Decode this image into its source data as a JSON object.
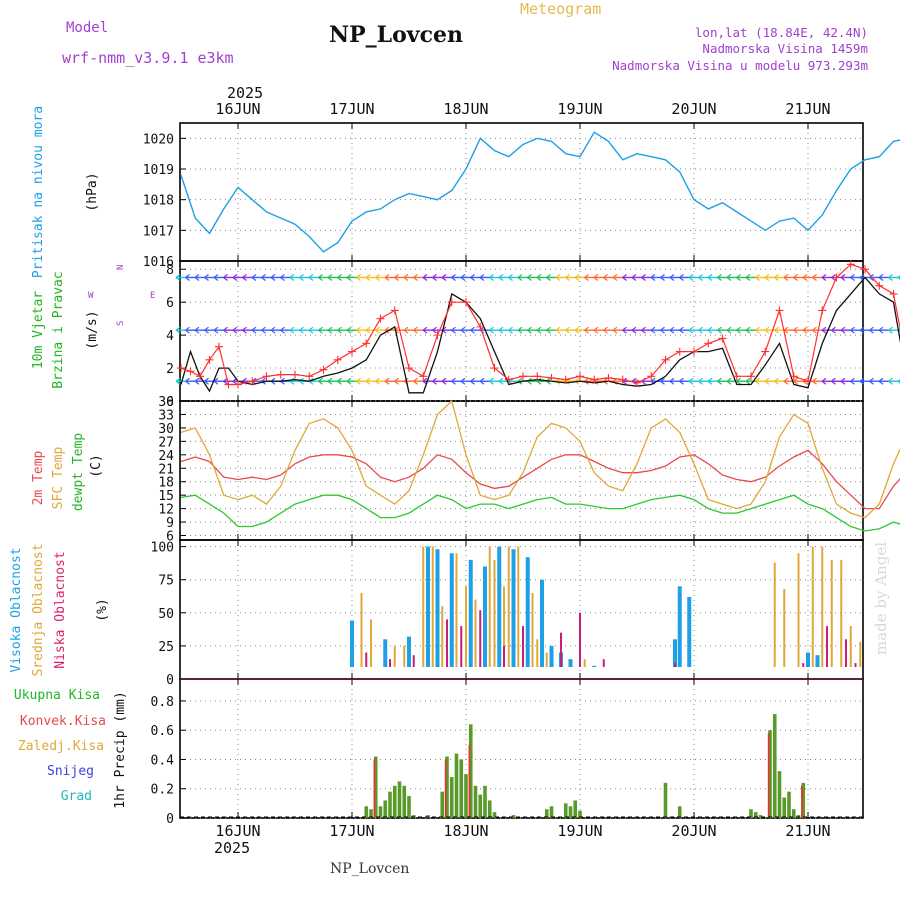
{
  "header": {
    "model_label": "Model",
    "model_name": "wrf-nmm_v3.9.1  e3km",
    "station": "NP_Lovcen",
    "meteogram": "Meteogram",
    "lonlat": "lon,lat (18.84E, 42.4N)",
    "elevation": "Nadmorska Visina 1459m",
    "model_elevation": "Nadmorska Visina u modelu 973.293m",
    "year": "2025",
    "footer_station": "NP_Lovcen",
    "watermark": "made by Angel"
  },
  "colors": {
    "pressure": "#1ea0e6",
    "temp2m": "#e84a4a",
    "sfc_temp": "#e0a838",
    "dewpoint": "#2ec82e",
    "cloud_high": "#1ea0e6",
    "cloud_mid": "#e0a838",
    "cloud_low": "#c81e78",
    "precip_total": "#5a9a2a",
    "precip_conv": "#e83030",
    "wind_speed": "#111111",
    "wind_gust": "#ff3030",
    "purple_text": "#a040d0",
    "title_orange": "#e8b850",
    "ylabel_green": "#22b522",
    "ylabel_red": "#e84a4a",
    "ylabel_orange": "#e0a838",
    "ylabel_blue": "#1ea0e6",
    "ylabel_pink": "#e0206e"
  },
  "chart_data": [
    {
      "type": "line",
      "title": "Pritisak na nivou mora",
      "ylabel": "Pritisak na nivou mora",
      "unit": "(hPa)",
      "x_days": [
        "16JUN",
        "17JUN",
        "18JUN",
        "19JUN",
        "20JUN",
        "21JUN"
      ],
      "x_start_day_offset": -0.5,
      "ylim": [
        1016,
        1020.5
      ],
      "yticks": [
        1016,
        1017,
        1018,
        1019,
        1020
      ],
      "hours": [
        -12,
        -9,
        -6,
        -3,
        0,
        3,
        6,
        9,
        12,
        15,
        18,
        21,
        24,
        27,
        30,
        33,
        36,
        39,
        42,
        45,
        48,
        51,
        54,
        57,
        60,
        63,
        66,
        69,
        72,
        75,
        78,
        81,
        84,
        87,
        90,
        93,
        96,
        99,
        102,
        105,
        108,
        111,
        114,
        117,
        120,
        123,
        126,
        129,
        132,
        135,
        138,
        141,
        144
      ],
      "values": [
        1018.8,
        1017.4,
        1016.9,
        1017.7,
        1018.4,
        1018.0,
        1017.6,
        1017.4,
        1017.2,
        1016.8,
        1016.3,
        1016.6,
        1017.3,
        1017.6,
        1017.7,
        1018.0,
        1018.2,
        1018.1,
        1018.0,
        1018.3,
        1019.0,
        1020.0,
        1019.6,
        1019.4,
        1019.8,
        1020.0,
        1019.9,
        1019.5,
        1019.4,
        1020.2,
        1019.9,
        1019.3,
        1019.5,
        1019.4,
        1019.3,
        1018.9,
        1018.0,
        1017.7,
        1017.9,
        1017.6,
        1017.3,
        1017.0,
        1017.3,
        1017.4,
        1017.0,
        1017.5,
        1018.3,
        1019.0,
        1019.3,
        1019.4,
        1019.9,
        1020.0,
        1019.3
      ]
    },
    {
      "type": "line",
      "title": "10m Vjetar Brzina i Pravac",
      "ylabel": "10m Vjetar Brzina i Pravac",
      "unit": "(m/s)",
      "compass_labels": [
        "N",
        "W",
        "E",
        "S"
      ],
      "ylim": [
        0,
        8.5
      ],
      "yticks": [
        0,
        2,
        4,
        6,
        8
      ],
      "series": [
        {
          "name": "speed",
          "hours": [
            -12,
            -10,
            -8,
            -6,
            -4,
            -2,
            0,
            3,
            6,
            9,
            12,
            15,
            18,
            21,
            24,
            27,
            30,
            33,
            36,
            39,
            42,
            45,
            48,
            51,
            54,
            57,
            60,
            63,
            66,
            69,
            72,
            75,
            78,
            81,
            84,
            87,
            90,
            93,
            96,
            99,
            102,
            105,
            108,
            111,
            114,
            117,
            120,
            123,
            126,
            129,
            132,
            135,
            138,
            141,
            144
          ],
          "values": [
            1.0,
            3.0,
            1.5,
            0.6,
            2.0,
            2.0,
            1.2,
            1.0,
            1.2,
            1.2,
            1.3,
            1.2,
            1.5,
            1.7,
            2.0,
            2.5,
            4.0,
            4.5,
            0.5,
            0.5,
            3.0,
            6.5,
            6.0,
            5.0,
            3.0,
            1.0,
            1.2,
            1.3,
            1.2,
            1.1,
            1.2,
            1.1,
            1.2,
            1.0,
            0.9,
            1.0,
            1.5,
            2.5,
            3.0,
            3.0,
            3.2,
            1.0,
            1.0,
            2.2,
            3.5,
            1.0,
            0.8,
            3.5,
            5.5,
            6.5,
            7.5,
            6.5,
            6.0,
            1.0,
            1.5
          ]
        },
        {
          "name": "gust",
          "hours": [
            -12,
            -10,
            -8,
            -6,
            -4,
            -2,
            0,
            3,
            6,
            9,
            12,
            15,
            18,
            21,
            24,
            27,
            30,
            33,
            36,
            39,
            42,
            45,
            48,
            51,
            54,
            57,
            60,
            63,
            66,
            69,
            72,
            75,
            78,
            81,
            84,
            87,
            90,
            93,
            96,
            99,
            102,
            105,
            108,
            111,
            114,
            117,
            120,
            123,
            126,
            129,
            132,
            135,
            138,
            141,
            144
          ],
          "values": [
            2.0,
            1.8,
            1.5,
            2.5,
            3.3,
            1.0,
            1.0,
            1.2,
            1.5,
            1.6,
            1.6,
            1.5,
            1.9,
            2.5,
            3.0,
            3.5,
            5.0,
            5.5,
            2.0,
            1.5,
            4.0,
            6.0,
            6.0,
            4.5,
            2.0,
            1.3,
            1.5,
            1.5,
            1.4,
            1.3,
            1.5,
            1.3,
            1.4,
            1.3,
            1.1,
            1.5,
            2.5,
            3.0,
            3.0,
            3.5,
            3.8,
            1.5,
            1.5,
            3.0,
            5.5,
            1.5,
            1.2,
            5.5,
            7.5,
            8.3,
            8.0,
            7.0,
            6.5,
            2.0,
            3.5
          ]
        }
      ]
    },
    {
      "type": "line",
      "title": "2m Temp / SFC Temp / dewpt Temp",
      "ylabels": [
        "2m Temp",
        "SFC Temp",
        "dewpt Temp"
      ],
      "unit": "(C)",
      "ylim": [
        5,
        36
      ],
      "yticks": [
        6,
        9,
        12,
        15,
        18,
        21,
        24,
        27,
        30,
        33,
        36
      ],
      "hours": [
        -12,
        -9,
        -6,
        -3,
        0,
        3,
        6,
        9,
        12,
        15,
        18,
        21,
        24,
        27,
        30,
        33,
        36,
        39,
        42,
        45,
        48,
        51,
        54,
        57,
        60,
        63,
        66,
        69,
        72,
        75,
        78,
        81,
        84,
        87,
        90,
        93,
        96,
        99,
        102,
        105,
        108,
        111,
        114,
        117,
        120,
        123,
        126,
        129,
        132,
        135,
        138,
        141,
        144
      ],
      "series": [
        {
          "name": "2m Temp",
          "values": [
            22.5,
            23.5,
            22.5,
            19,
            18.5,
            19,
            18.5,
            19.5,
            22,
            23.5,
            24,
            24,
            23.5,
            22,
            19,
            18,
            19,
            21,
            24,
            23,
            20,
            17.5,
            16.5,
            17,
            19,
            21,
            23,
            24,
            24,
            22.5,
            21,
            20,
            20,
            20.5,
            21.5,
            23.5,
            24,
            22,
            19.5,
            18.5,
            18,
            19,
            21.5,
            23.5,
            25,
            22,
            18,
            15,
            12,
            12,
            17,
            20.5,
            21.5
          ]
        },
        {
          "name": "SFC Temp",
          "values": [
            29,
            30,
            24,
            15,
            14,
            15,
            13,
            17,
            25,
            31,
            32,
            30,
            25,
            17,
            15,
            13,
            16,
            24,
            33,
            36,
            24,
            15,
            14,
            15,
            20,
            28,
            31,
            30,
            27,
            20,
            17,
            16,
            22,
            30,
            32,
            29,
            22,
            14,
            13,
            12,
            13,
            18,
            28,
            33,
            31,
            21,
            13,
            11,
            10,
            13,
            22,
            29,
            29
          ]
        },
        {
          "name": "dewpt Temp",
          "values": [
            14.5,
            15,
            13,
            11,
            8,
            8,
            9,
            11,
            13,
            14,
            15,
            15,
            14,
            12,
            10,
            10,
            11,
            13,
            15,
            14,
            12,
            13,
            13,
            12,
            13,
            14,
            14.5,
            13,
            13,
            12.5,
            12,
            12,
            13,
            14,
            14.5,
            15,
            14,
            12,
            11,
            11,
            12,
            13,
            14,
            15,
            13,
            12,
            10,
            8,
            7,
            7.5,
            9,
            8,
            7.5
          ]
        }
      ]
    },
    {
      "type": "bar",
      "title": "Visoka Oblacnost / Srednja Oblacnost / Niska Oblacnost",
      "ylabels": [
        "Visoka Oblacnost",
        "Srednja Oblacnost",
        "Niska Oblacnost"
      ],
      "unit": "(%)",
      "ylim": [
        0,
        105
      ],
      "yticks": [
        0,
        25,
        50,
        75,
        100
      ],
      "series": [
        {
          "name": "Visoka Oblacnost",
          "hours": [
            24,
            31,
            36,
            40,
            42,
            45,
            49,
            52,
            55,
            58,
            61,
            64,
            66,
            68,
            70,
            75,
            78,
            92,
            93,
            95,
            120,
            122
          ],
          "values": [
            44,
            30,
            32,
            100,
            98,
            95,
            90,
            85,
            100,
            98,
            92,
            75,
            25,
            20,
            15,
            10,
            8,
            30,
            70,
            62,
            20,
            18
          ]
        },
        {
          "name": "Srednja Oblacnost",
          "hours": [
            26,
            28,
            33,
            35,
            39,
            41,
            43,
            46,
            48,
            50,
            53,
            54,
            56,
            57,
            59,
            62,
            63,
            65,
            73,
            113,
            115,
            118,
            121,
            123,
            125,
            127,
            129,
            131
          ],
          "values": [
            65,
            45,
            25,
            25,
            100,
            100,
            55,
            95,
            70,
            60,
            100,
            90,
            70,
            100,
            100,
            65,
            30,
            20,
            15,
            88,
            68,
            95,
            100,
            100,
            90,
            90,
            40,
            28
          ]
        },
        {
          "name": "Niska Oblacnost",
          "hours": [
            27,
            32,
            37,
            44,
            47,
            51,
            56,
            60,
            68,
            72,
            77,
            92,
            97,
            119,
            124,
            128,
            130
          ],
          "values": [
            20,
            15,
            18,
            45,
            40,
            52,
            25,
            40,
            35,
            50,
            15,
            12,
            8,
            12,
            40,
            30,
            12
          ]
        }
      ]
    },
    {
      "type": "bar",
      "title": "1hr Precip",
      "ylabels": [
        "Ukupna Kisa",
        "Konvek.Kisa",
        "Zaledj.Kisa",
        "Snijeg",
        "Grad"
      ],
      "unit": "1hr Precip (mm)",
      "ylim": [
        0,
        0.95
      ],
      "yticks": [
        0,
        0.2,
        0.4,
        0.6,
        0.8
      ],
      "series": [
        {
          "name": "Ukupna Kisa",
          "hours": [
            27,
            28,
            29,
            30,
            31,
            32,
            33,
            34,
            35,
            36,
            37,
            40,
            43,
            44,
            45,
            46,
            47,
            48,
            49,
            50,
            51,
            52,
            53,
            54,
            58,
            65,
            66,
            69,
            70,
            71,
            72,
            90,
            93,
            108,
            109,
            110,
            112,
            113,
            114,
            115,
            116,
            117,
            118,
            119
          ],
          "values": [
            0.08,
            0.06,
            0.42,
            0.08,
            0.12,
            0.18,
            0.22,
            0.25,
            0.22,
            0.15,
            0.02,
            0.02,
            0.18,
            0.42,
            0.28,
            0.44,
            0.4,
            0.3,
            0.64,
            0.22,
            0.16,
            0.22,
            0.12,
            0.04,
            0.02,
            0.06,
            0.08,
            0.1,
            0.08,
            0.12,
            0.05,
            0.24,
            0.08,
            0.06,
            0.04,
            0.02,
            0.6,
            0.71,
            0.32,
            0.14,
            0.18,
            0.06,
            0.02,
            0.24
          ]
        },
        {
          "name": "Konvek.Kisa",
          "hours": [
            29,
            44,
            49,
            112,
            119
          ],
          "values": [
            0.4,
            0.4,
            0.5,
            0.58,
            0.22
          ]
        }
      ]
    }
  ]
}
